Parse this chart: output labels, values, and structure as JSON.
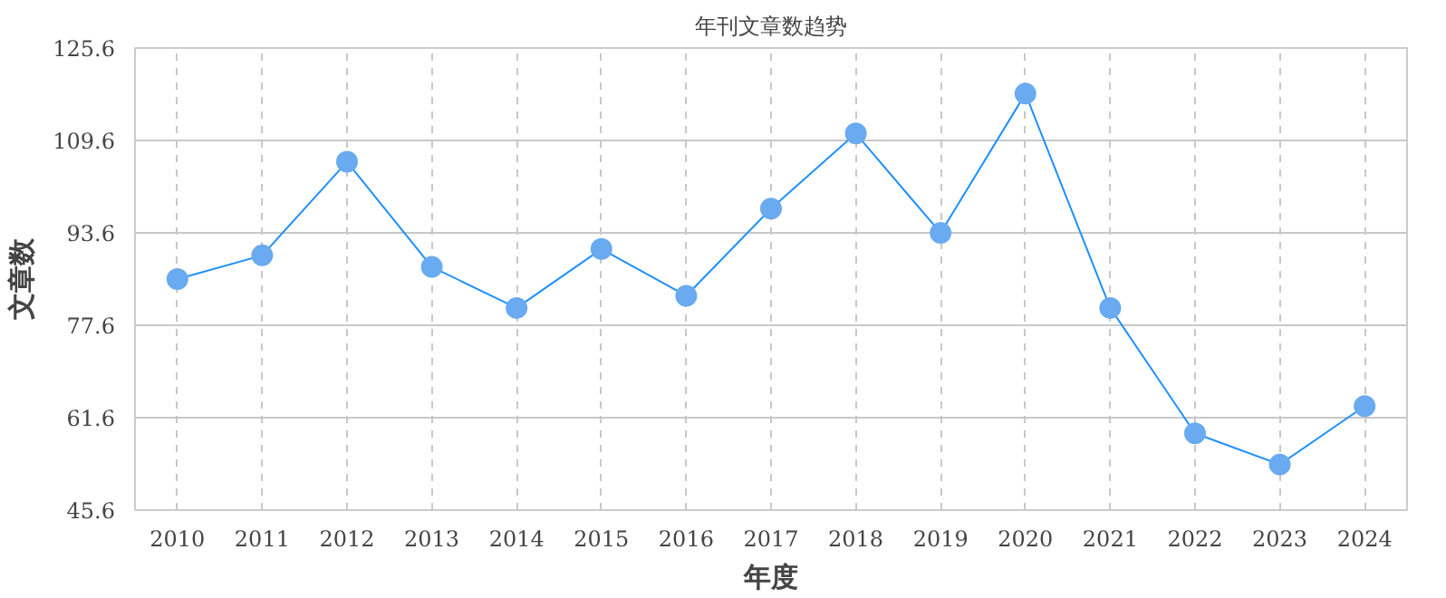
{
  "chart_data": {
    "type": "line",
    "title": "年刊文章数趋势",
    "xlabel": "年度",
    "ylabel": "文章数",
    "categories": [
      "2010",
      "2011",
      "2012",
      "2013",
      "2014",
      "2015",
      "2016",
      "2017",
      "2018",
      "2019",
      "2020",
      "2021",
      "2022",
      "2023",
      "2024"
    ],
    "series": [
      {
        "color": "#1e90ff",
        "values": [
          85.6,
          89.7,
          105.9,
          87.7,
          80.6,
          90.8,
          82.7,
          97.8,
          110.8,
          93.6,
          117.7,
          80.6,
          58.9,
          53.5,
          63.6
        ]
      }
    ],
    "ylim": [
      45.6,
      125.6
    ],
    "yticks": [
      45.6,
      61.6,
      77.6,
      93.6,
      109.6,
      125.6
    ],
    "grid": true,
    "marker": "circle",
    "line_style": "solid"
  }
}
